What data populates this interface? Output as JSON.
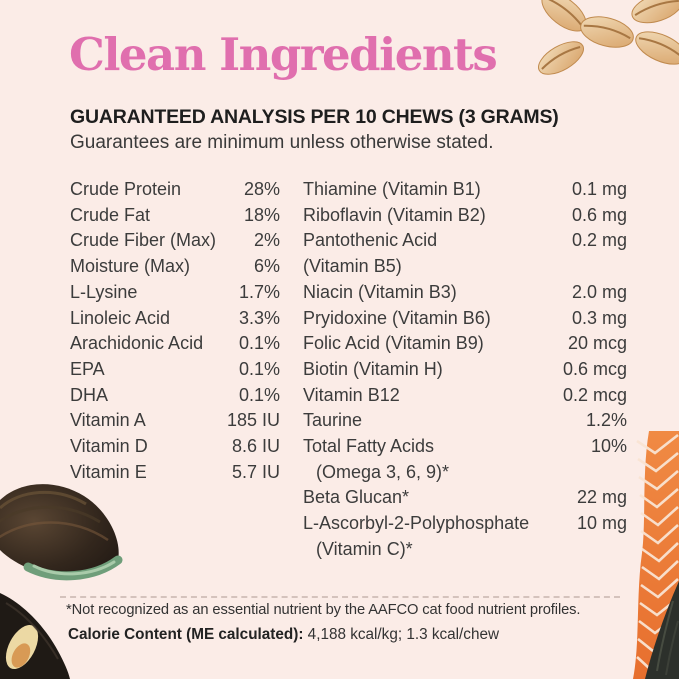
{
  "title": "Clean Ingredients",
  "header": {
    "heading": "GUARANTEED ANALYSIS PER 10 CHEWS (3 GRAMS)",
    "subheading": "Guarantees are minimum unless otherwise stated."
  },
  "analysis": {
    "left_column": [
      {
        "label": "Crude Protein",
        "value": "28%"
      },
      {
        "label": "Crude Fat",
        "value": "18%"
      },
      {
        "label": "Crude Fiber (Max)",
        "value": "2%"
      },
      {
        "label": "Moisture (Max)",
        "value": "6%"
      },
      {
        "label": "L-Lysine",
        "value": "1.7%"
      },
      {
        "label": "Linoleic Acid",
        "value": "3.3%"
      },
      {
        "label": "Arachidonic Acid",
        "value": "0.1%"
      },
      {
        "label": "EPA",
        "value": "0.1%"
      },
      {
        "label": "DHA",
        "value": "0.1%"
      },
      {
        "label": "Vitamin A",
        "value": "185 IU"
      },
      {
        "label": "Vitamin D",
        "value": "8.6 IU"
      },
      {
        "label": "Vitamin E",
        "value": "5.7 IU"
      }
    ],
    "right_column": [
      {
        "label": "Thiamine (Vitamin B1)",
        "value": "0.1 mg"
      },
      {
        "label": "Riboflavin (Vitamin B2)",
        "value": "0.6 mg"
      },
      {
        "label": "Pantothenic Acid",
        "label2": "(Vitamin B5)",
        "indent2": false,
        "value": "0.2 mg"
      },
      {
        "label": "Niacin (Vitamin B3)",
        "value": "2.0 mg"
      },
      {
        "label": "Pryidoxine (Vitamin B6)",
        "value": "0.3 mg"
      },
      {
        "label": "Folic Acid (Vitamin B9)",
        "value": "20 mcg"
      },
      {
        "label": "Biotin (Vitamin H)",
        "value": "0.6 mcg"
      },
      {
        "label": "Vitamin B12",
        "value": "0.2 mcg"
      },
      {
        "label": "Taurine",
        "value": "1.2%"
      },
      {
        "label": "Total Fatty Acids",
        "label2": "(Omega 3, 6, 9)*",
        "indent2": true,
        "value": "10%"
      },
      {
        "label": "Beta Glucan*",
        "value": "22 mg"
      },
      {
        "label": "L-Ascorbyl-2-Polyphosphate",
        "label2": "(Vitamin C)*",
        "indent2": true,
        "value": "10 mg"
      }
    ]
  },
  "footnotes": {
    "asterisk_note": "*Not recognized as an essential nutrient by the AAFCO cat food nutrient profiles.",
    "calorie_label": "Calorie Content (ME calculated):",
    "calorie_value": " 4,188 kcal/kg; 1.3 kcal/chew"
  },
  "decorations": {
    "top_right": "oat-flakes",
    "bottom_left": "green-lipped-mussel",
    "bottom_left_corner": "mussel-shell",
    "bottom_right": "salmon-fillet"
  },
  "colors": {
    "background": "#fbece7",
    "title_pink": "#e06fae",
    "heading_text": "#1e1e1e",
    "body_text": "#3c3c3c",
    "salmon_orange": "#ee7a36",
    "mussel_green": "#76a583",
    "oat_tan": "#dfb078"
  }
}
